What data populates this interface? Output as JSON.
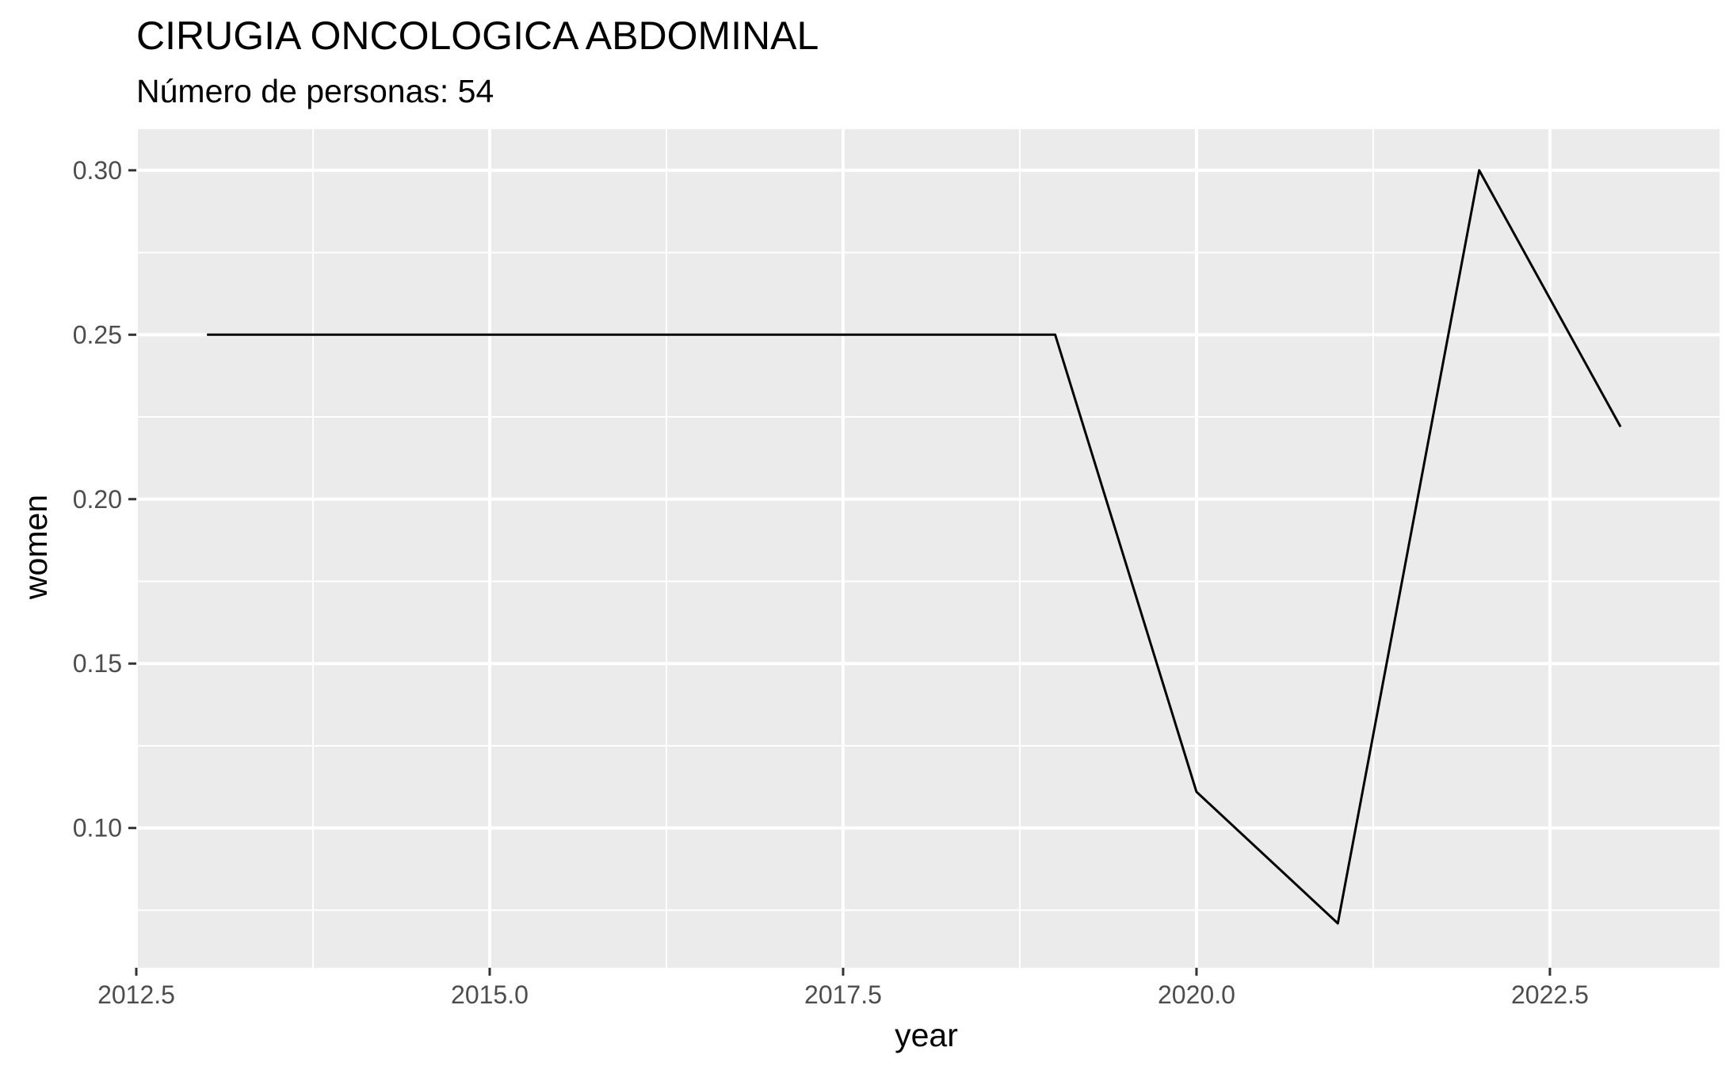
{
  "chart_data": {
    "type": "line",
    "title": "CIRUGIA ONCOLOGICA ABDOMINAL",
    "subtitle": "Número de personas: 54",
    "xlabel": "year",
    "ylabel": "women",
    "x_ticks": [
      2012.5,
      2015.0,
      2017.5,
      2020.0,
      2022.5
    ],
    "x_tick_labels": [
      "2012.5",
      "2015.0",
      "2017.5",
      "2020.0",
      "2022.5"
    ],
    "y_ticks": [
      0.1,
      0.15,
      0.2,
      0.25,
      0.3
    ],
    "y_tick_labels": [
      "0.10",
      "0.15",
      "0.20",
      "0.25",
      "0.30"
    ],
    "xlim": [
      2012.5,
      2023.7
    ],
    "ylim": [
      0.0575,
      0.3125
    ],
    "grid": true,
    "series": [
      {
        "x": [
          2013,
          2014,
          2015,
          2016,
          2017,
          2018,
          2019,
          2020,
          2021,
          2022,
          2023
        ],
        "values": [
          0.25,
          0.25,
          0.25,
          0.25,
          0.25,
          0.25,
          0.25,
          0.111,
          0.071,
          0.3,
          0.222
        ]
      }
    ],
    "colors": {
      "panel": "#ebebeb",
      "grid": "#ffffff",
      "line": "#000000"
    }
  }
}
